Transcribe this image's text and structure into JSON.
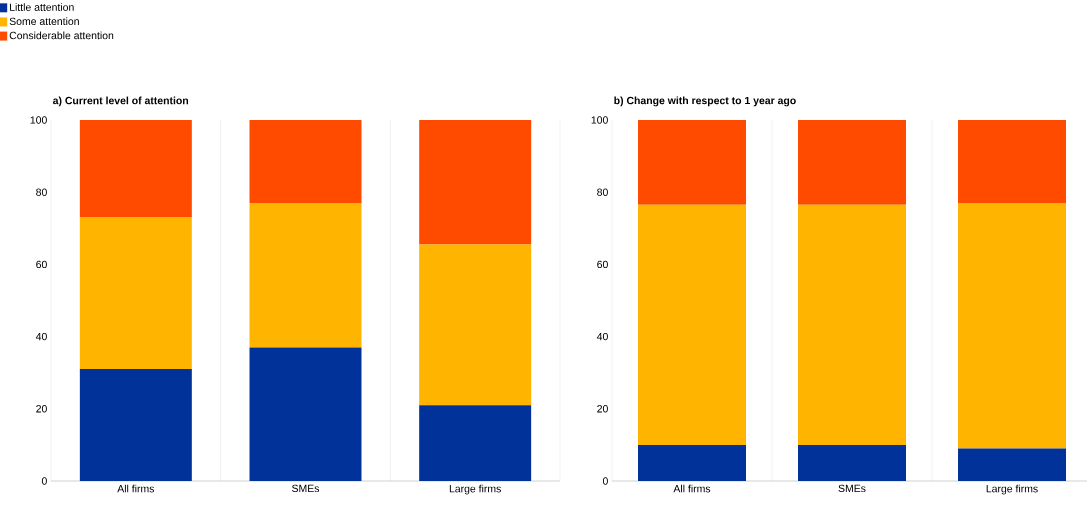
{
  "chart_data": [
    {
      "type": "bar",
      "title": "a) Current level of attention",
      "categories": [
        "All firms",
        "SMEs",
        "Large firms"
      ],
      "stacked": true,
      "ylim": [
        0,
        100
      ],
      "yticks": [
        0,
        20,
        40,
        60,
        80,
        100
      ],
      "grid": "x",
      "legend": "top left",
      "series": [
        {
          "name": "Little attention",
          "color": "#003299",
          "values": [
            31,
            37,
            21
          ]
        },
        {
          "name": "Some attention",
          "color": "#ffb400",
          "values": [
            42,
            40,
            44.5
          ]
        },
        {
          "name": "Considerable attention",
          "color": "#ff4b00",
          "values": [
            27,
            23,
            34.5
          ]
        }
      ]
    },
    {
      "type": "bar",
      "title": "b) Change with respect to 1 year ago",
      "categories": [
        "All firms",
        "SMEs",
        "Large firms"
      ],
      "stacked": true,
      "ylim": [
        0,
        100
      ],
      "yticks": [
        0,
        20,
        40,
        60,
        80,
        100
      ],
      "grid": "x",
      "series": [
        {
          "color": "#003299",
          "values": [
            10,
            10,
            9
          ]
        },
        {
          "color": "#ffb400",
          "values": [
            66.5,
            66.5,
            68
          ]
        },
        {
          "color": "#ff4b00",
          "values": [
            23.5,
            23.5,
            23
          ]
        }
      ]
    }
  ]
}
